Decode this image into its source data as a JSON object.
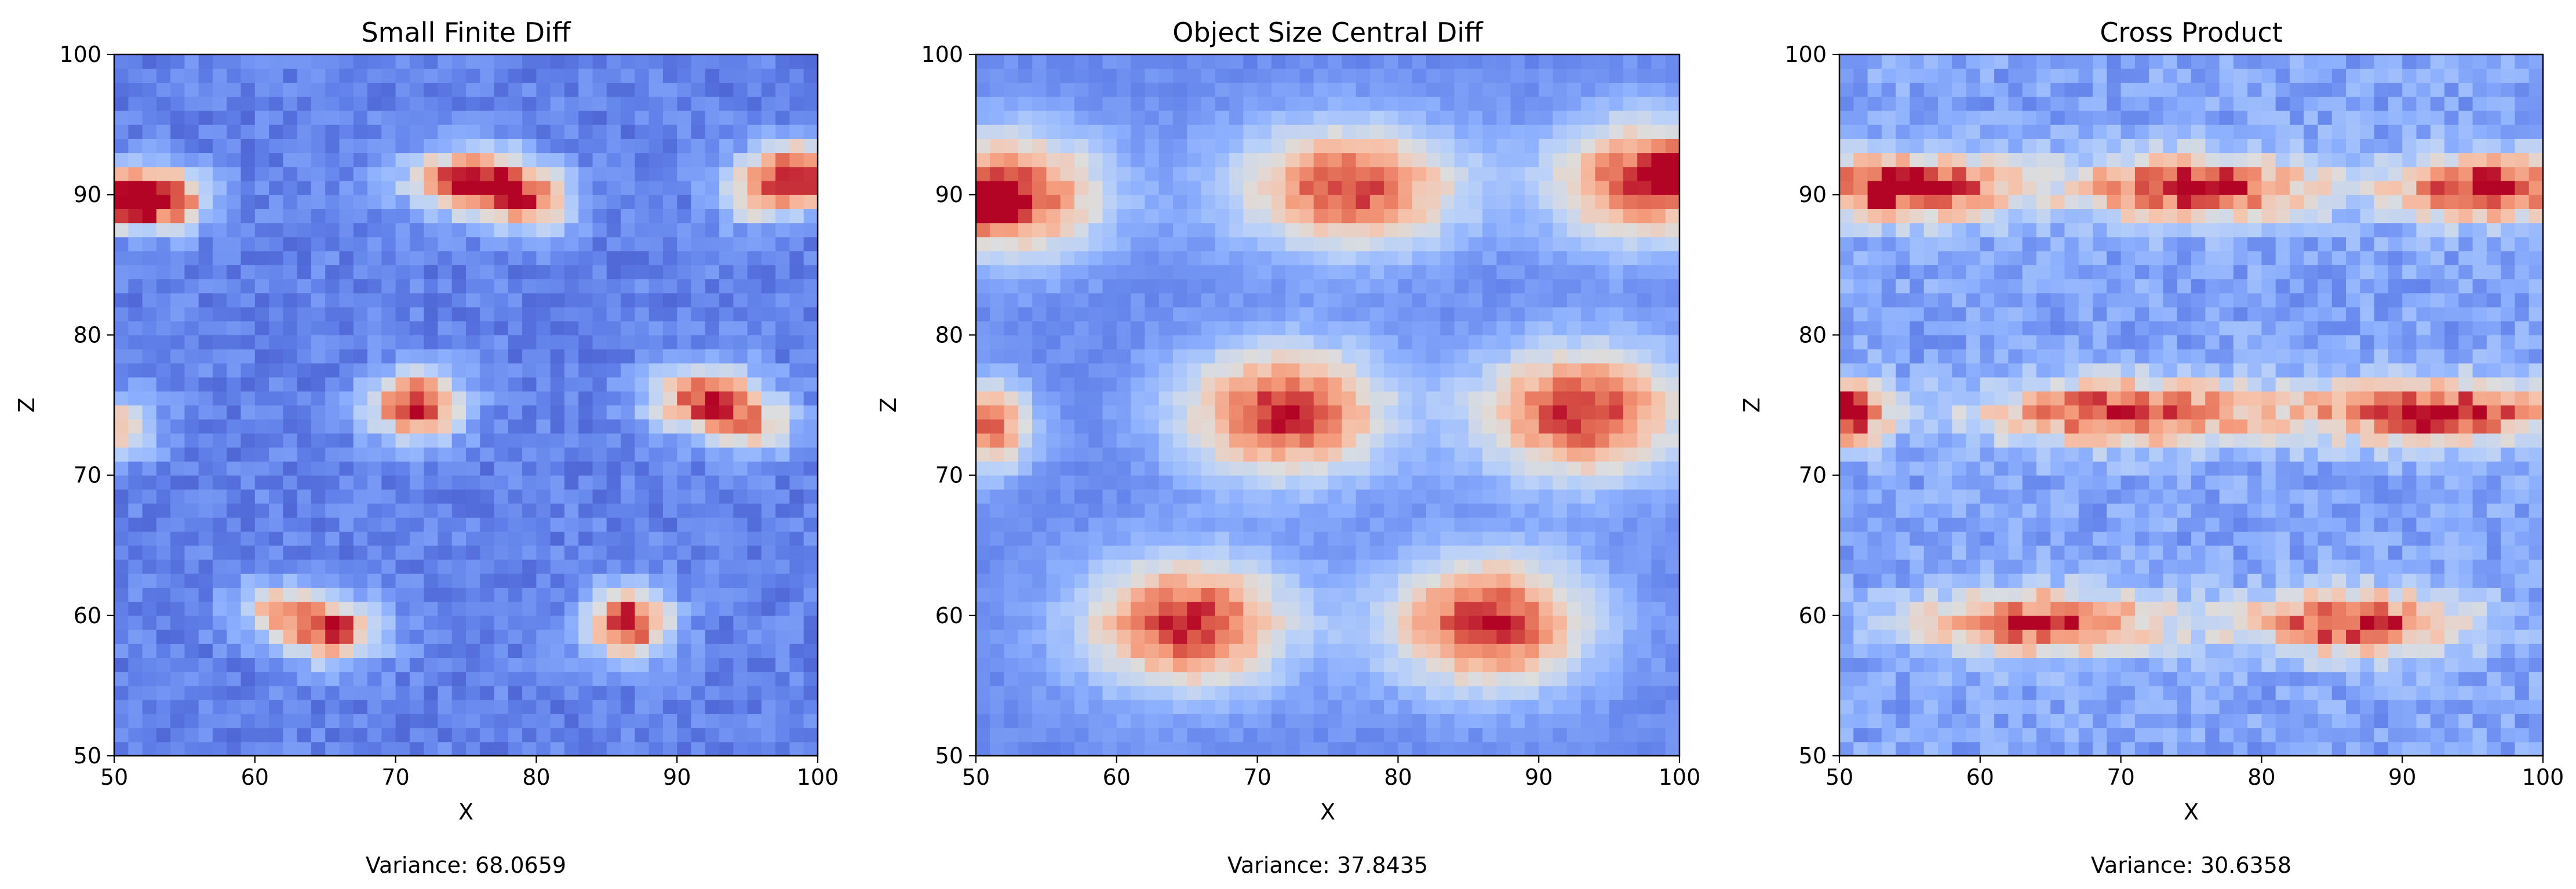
{
  "chart_data": [
    {
      "type": "heatmap",
      "title": "Small Finite Diff",
      "xlabel": "X",
      "ylabel": "Z",
      "xlim": [
        50,
        100
      ],
      "ylim": [
        50,
        100
      ],
      "xticks": [
        50,
        60,
        70,
        80,
        90,
        100
      ],
      "yticks": [
        50,
        60,
        70,
        80,
        90,
        100
      ],
      "grid": false,
      "colormap": "coolwarm",
      "caption": "Variance: 68.0659",
      "cell_size": 1,
      "base_level": 0.13,
      "noise_amplitude": 0.09,
      "hot_spots": [
        {
          "x": 50.5,
          "z": 90.0,
          "peak": 0.9,
          "sx": 3.0,
          "sz": 1.4
        },
        {
          "x": 53.5,
          "z": 89.5,
          "peak": 0.55,
          "sx": 2.2,
          "sz": 1.4
        },
        {
          "x": 75.5,
          "z": 91.0,
          "peak": 0.92,
          "sx": 3.0,
          "sz": 1.5
        },
        {
          "x": 79.5,
          "z": 89.5,
          "peak": 0.55,
          "sx": 2.2,
          "sz": 1.5
        },
        {
          "x": 99.5,
          "z": 91.5,
          "peak": 0.88,
          "sx": 2.6,
          "sz": 1.5
        },
        {
          "x": 96.0,
          "z": 90.0,
          "peak": 0.45,
          "sx": 2.0,
          "sz": 1.5
        },
        {
          "x": 71.5,
          "z": 75.0,
          "peak": 0.9,
          "sx": 2.2,
          "sz": 1.6
        },
        {
          "x": 92.0,
          "z": 75.5,
          "peak": 0.8,
          "sx": 2.6,
          "sz": 1.6
        },
        {
          "x": 95.5,
          "z": 73.5,
          "peak": 0.45,
          "sx": 2.0,
          "sz": 1.4
        },
        {
          "x": 50.5,
          "z": 73.5,
          "peak": 0.5,
          "sx": 1.8,
          "sz": 1.4
        },
        {
          "x": 65.5,
          "z": 59.0,
          "peak": 0.8,
          "sx": 2.4,
          "sz": 1.5
        },
        {
          "x": 61.5,
          "z": 60.5,
          "peak": 0.45,
          "sx": 2.0,
          "sz": 1.3
        },
        {
          "x": 86.5,
          "z": 59.5,
          "peak": 0.9,
          "sx": 2.0,
          "sz": 1.6
        }
      ]
    },
    {
      "type": "heatmap",
      "title": "Object Size Central Diff",
      "xlabel": "X",
      "ylabel": "Z",
      "xlim": [
        50,
        100
      ],
      "ylim": [
        50,
        100
      ],
      "xticks": [
        50,
        60,
        70,
        80,
        90,
        100
      ],
      "yticks": [
        50,
        60,
        70,
        80,
        90,
        100
      ],
      "grid": false,
      "colormap": "coolwarm",
      "caption": "Variance: 37.8435",
      "cell_size": 1,
      "base_level": 0.15,
      "noise_amplitude": 0.05,
      "hot_spots": [
        {
          "x": 52.5,
          "z": 90.0,
          "peak": 0.8,
          "sx": 4.5,
          "sz": 3.0
        },
        {
          "x": 50.5,
          "z": 89.5,
          "peak": 0.9,
          "sx": 1.2,
          "sz": 1.0
        },
        {
          "x": 76.5,
          "z": 90.5,
          "peak": 0.78,
          "sx": 5.5,
          "sz": 3.0
        },
        {
          "x": 97.5,
          "z": 91.0,
          "peak": 0.78,
          "sx": 4.5,
          "sz": 3.0
        },
        {
          "x": 99.8,
          "z": 91.5,
          "peak": 0.92,
          "sx": 1.0,
          "sz": 1.0
        },
        {
          "x": 72.0,
          "z": 74.5,
          "peak": 0.82,
          "sx": 5.0,
          "sz": 3.2
        },
        {
          "x": 93.0,
          "z": 74.5,
          "peak": 0.82,
          "sx": 5.0,
          "sz": 3.2
        },
        {
          "x": 51.0,
          "z": 73.5,
          "peak": 0.7,
          "sx": 2.0,
          "sz": 2.2
        },
        {
          "x": 65.0,
          "z": 59.5,
          "peak": 0.82,
          "sx": 5.0,
          "sz": 3.2
        },
        {
          "x": 86.5,
          "z": 59.5,
          "peak": 0.82,
          "sx": 5.0,
          "sz": 3.2
        }
      ]
    },
    {
      "type": "heatmap",
      "title": "Cross Product",
      "xlabel": "X",
      "ylabel": "Z",
      "xlim": [
        50,
        100
      ],
      "ylim": [
        50,
        100
      ],
      "xticks": [
        50,
        60,
        70,
        80,
        90,
        100
      ],
      "yticks": [
        50,
        60,
        70,
        80,
        90,
        100
      ],
      "grid": false,
      "colormap": "coolwarm",
      "caption": "Variance: 30.6358",
      "cell_size": 1,
      "base_level": 0.22,
      "noise_amplitude": 0.11,
      "hot_spots": [
        {
          "x": 54.5,
          "z": 90.5,
          "peak": 0.85,
          "sx": 5.5,
          "sz": 1.6
        },
        {
          "x": 75.5,
          "z": 90.5,
          "peak": 0.82,
          "sx": 6.0,
          "sz": 1.6
        },
        {
          "x": 96.0,
          "z": 90.5,
          "peak": 0.8,
          "sx": 4.5,
          "sz": 1.6
        },
        {
          "x": 50.5,
          "z": 74.5,
          "peak": 0.88,
          "sx": 2.0,
          "sz": 1.6
        },
        {
          "x": 70.5,
          "z": 74.5,
          "peak": 0.78,
          "sx": 7.0,
          "sz": 1.6
        },
        {
          "x": 92.5,
          "z": 74.5,
          "peak": 0.78,
          "sx": 6.5,
          "sz": 1.6
        },
        {
          "x": 64.5,
          "z": 59.5,
          "peak": 0.75,
          "sx": 6.0,
          "sz": 1.6
        },
        {
          "x": 86.5,
          "z": 59.5,
          "peak": 0.75,
          "sx": 5.5,
          "sz": 1.6
        }
      ]
    }
  ]
}
